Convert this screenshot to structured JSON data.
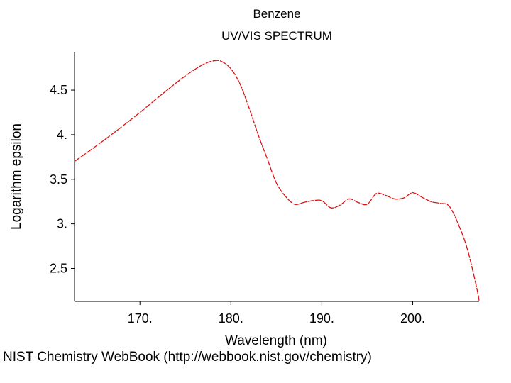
{
  "credit": "NIST Chemistry WebBook (http://webbook.nist.gov/chemistry)",
  "colors": {
    "series": "#dd1111",
    "axis": "#000000",
    "background": "#ffffff"
  },
  "chart_data": {
    "type": "line",
    "title": "Benzene",
    "subtitle": "UV/VIS SPECTRUM",
    "xlabel": "Wavelength (nm)",
    "ylabel": "Logarithm epsilon",
    "xlim": [
      162.8,
      207.3
    ],
    "ylim": [
      2.13,
      4.93
    ],
    "grid": false,
    "xticks": [
      {
        "value": 170,
        "label": "170."
      },
      {
        "value": 180,
        "label": "180."
      },
      {
        "value": 190,
        "label": "190."
      },
      {
        "value": 200,
        "label": "200."
      }
    ],
    "yticks": [
      {
        "value": 2.5,
        "label": "2.5"
      },
      {
        "value": 3.0,
        "label": "3."
      },
      {
        "value": 3.5,
        "label": "3.5"
      },
      {
        "value": 4.0,
        "label": "4."
      },
      {
        "value": 4.5,
        "label": "4.5"
      }
    ],
    "series": [
      {
        "name": "Benzene",
        "x": [
          162.8,
          165.0,
          167.5,
          170.0,
          172.5,
          175.0,
          177.0,
          178.2,
          179.0,
          180.0,
          181.0,
          182.0,
          183.0,
          184.0,
          185.0,
          186.0,
          187.0,
          188.0,
          189.0,
          190.0,
          191.0,
          192.0,
          193.0,
          194.0,
          195.0,
          196.0,
          197.0,
          198.0,
          199.0,
          200.0,
          201.0,
          202.0,
          203.0,
          204.0,
          205.0,
          206.0,
          207.0,
          207.3
        ],
        "values": [
          3.7,
          3.86,
          4.05,
          4.25,
          4.46,
          4.66,
          4.79,
          4.83,
          4.82,
          4.74,
          4.57,
          4.3,
          4.0,
          3.73,
          3.46,
          3.31,
          3.22,
          3.24,
          3.26,
          3.26,
          3.18,
          3.21,
          3.28,
          3.24,
          3.22,
          3.34,
          3.32,
          3.28,
          3.29,
          3.35,
          3.3,
          3.25,
          3.23,
          3.2,
          3.0,
          2.72,
          2.3,
          2.14
        ]
      }
    ]
  }
}
